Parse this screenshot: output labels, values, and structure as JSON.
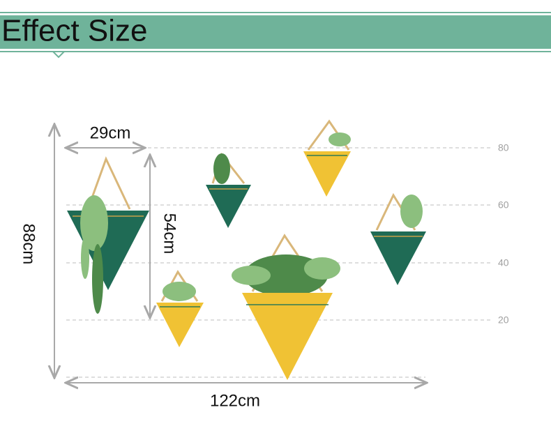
{
  "header": {
    "title": "Effect Size"
  },
  "dimensions": {
    "width": "29cm",
    "height": "54cm",
    "total_height": "88cm",
    "total_width": "122cm"
  },
  "scale": {
    "labels": [
      "80",
      "60",
      "40",
      "20"
    ]
  }
}
